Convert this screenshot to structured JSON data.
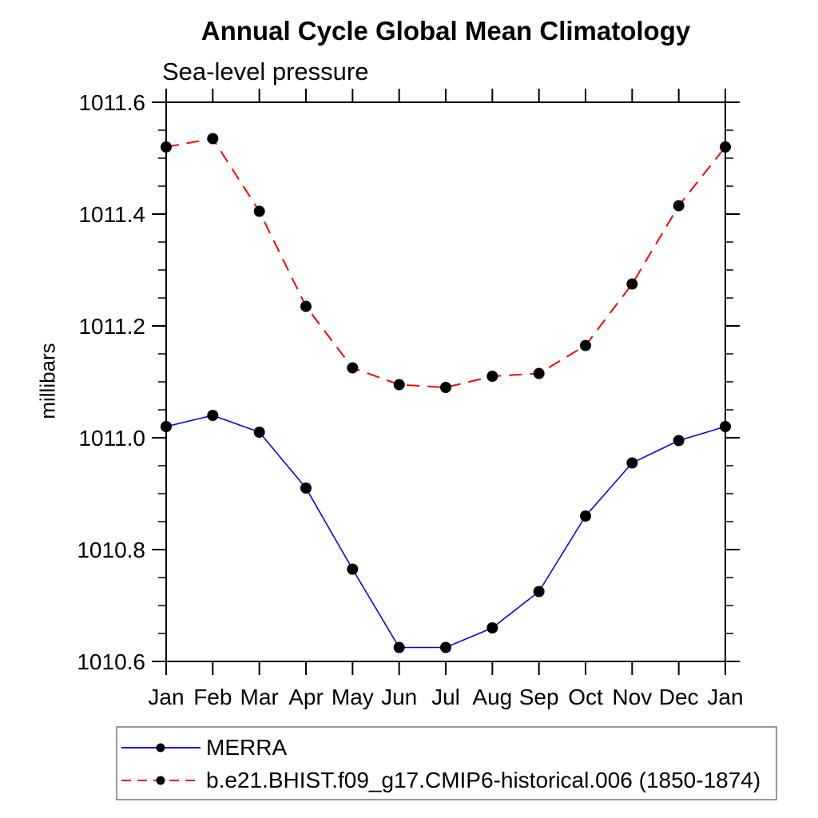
{
  "title": "Annual Cycle Global Mean Climatology",
  "subtitle": "Sea-level pressure",
  "colors": {
    "merra_line": "#0000ff",
    "model_line": "#ff0000",
    "marker": "#000000",
    "axis": "#000000",
    "legend_border": "#999999"
  },
  "chart_data": {
    "type": "line",
    "title": "Annual Cycle Global Mean Climatology",
    "subtitle": "Sea-level pressure",
    "xlabel": "",
    "ylabel": "millibars",
    "x_labels": [
      "Jan",
      "Feb",
      "Mar",
      "Apr",
      "May",
      "Jun",
      "Jul",
      "Aug",
      "Sep",
      "Oct",
      "Nov",
      "Dec",
      "Jan"
    ],
    "ylim": [
      1010.6,
      1011.6
    ],
    "ytick_major_step": 0.2,
    "ytick_minor_step": 0.05,
    "ytick_labels": [
      "1011.6",
      "1011.4",
      "1011.2",
      "1011.0",
      "1010.8",
      "1010.6"
    ],
    "grid": false,
    "legend_position": "bottom-left-box",
    "series": [
      {
        "name": "MERRA",
        "color": "#0000ff",
        "line_style": "solid",
        "line_width": 1.6,
        "marker": "filled-circle",
        "marker_color": "#000000",
        "values": [
          1011.02,
          1011.04,
          1011.01,
          1010.91,
          1010.765,
          1010.625,
          1010.625,
          1010.66,
          1010.725,
          1010.86,
          1010.955,
          1010.995,
          1011.02
        ]
      },
      {
        "name": "b.e21.BHIST.f09_g17.CMIP6-historical.006 (1850-1874)",
        "color": "#ff0000",
        "line_style": "dashed",
        "line_width": 2,
        "marker": "filled-circle",
        "marker_color": "#000000",
        "values": [
          1011.52,
          1011.535,
          1011.405,
          1011.235,
          1011.125,
          1011.095,
          1011.09,
          1011.11,
          1011.115,
          1011.165,
          1011.275,
          1011.415,
          1011.52
        ]
      }
    ]
  }
}
